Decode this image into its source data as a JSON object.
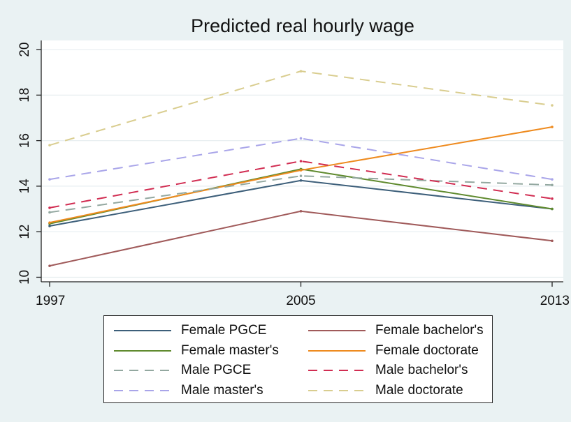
{
  "chart_data": {
    "type": "line",
    "title": "Predicted real hourly wage",
    "xlabel": "",
    "ylabel": "",
    "x": [
      1997,
      2005,
      2013
    ],
    "x_tick_labels": [
      "1997",
      "2005",
      "2013"
    ],
    "y_ticks": [
      10,
      12,
      14,
      16,
      18,
      20
    ],
    "y_tick_labels": [
      "10",
      "12",
      "14",
      "16",
      "18",
      "20"
    ],
    "xlim": [
      1997,
      2013
    ],
    "ylim": [
      9.8,
      20.4
    ],
    "grid": "horizontal",
    "legend_position": "bottom",
    "series": [
      {
        "name": "Female PGCE",
        "values": [
          12.25,
          14.25,
          13.0
        ],
        "color": "#3d5f7a",
        "dashed": false
      },
      {
        "name": "Female bachelor's",
        "values": [
          10.5,
          12.9,
          11.6
        ],
        "color": "#a05a5a",
        "dashed": false
      },
      {
        "name": "Female master's",
        "values": [
          12.35,
          14.75,
          13.0
        ],
        "color": "#5f8a2e",
        "dashed": false
      },
      {
        "name": "Female doctorate",
        "values": [
          12.4,
          14.7,
          16.6
        ],
        "color": "#ee8a1e",
        "dashed": false
      },
      {
        "name": "Male PGCE",
        "values": [
          12.85,
          14.45,
          14.05
        ],
        "color": "#93a8a0",
        "dashed": true
      },
      {
        "name": "Male bachelor's",
        "values": [
          13.05,
          15.1,
          13.45
        ],
        "color": "#d12d52",
        "dashed": true
      },
      {
        "name": "Male master's",
        "values": [
          14.3,
          16.1,
          14.3
        ],
        "color": "#a9a5e9",
        "dashed": true
      },
      {
        "name": "Male doctorate",
        "values": [
          15.8,
          19.05,
          17.55
        ],
        "color": "#d9cd8f",
        "dashed": true
      }
    ]
  }
}
